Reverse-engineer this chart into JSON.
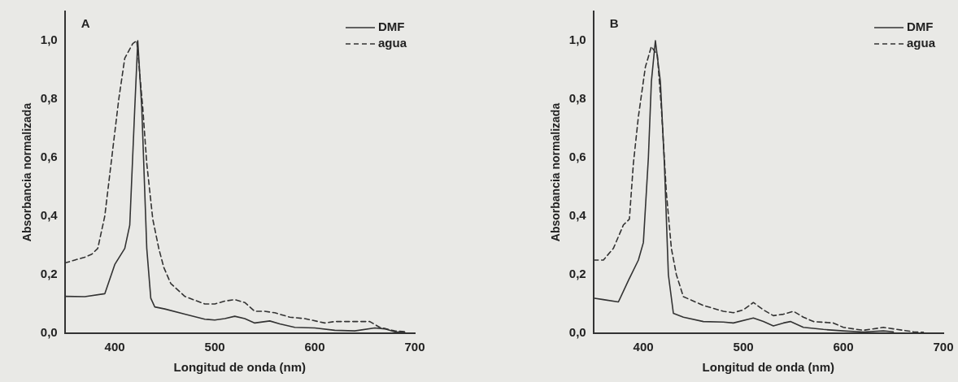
{
  "chart_data": [
    {
      "type": "line",
      "title": "A",
      "xlabel": "Longitud de onda (nm)",
      "ylabel": "Absorbancia normalizada",
      "xlim": [
        350,
        700
      ],
      "ylim": [
        0,
        1.1
      ],
      "xticks": [
        400,
        500,
        600,
        700
      ],
      "yticks": [
        {
          "value": 0,
          "label": "0,0"
        },
        {
          "value": 0.2,
          "label": "0,2"
        },
        {
          "value": 0.4,
          "label": "0,4"
        },
        {
          "value": 0.6,
          "label": "0,6"
        },
        {
          "value": 0.8,
          "label": "0,8"
        },
        {
          "value": 1.0,
          "label": "1,0"
        }
      ],
      "grid": false,
      "legend": "top right",
      "marker": "none",
      "series": [
        {
          "name": "DMF",
          "color": "#333333",
          "line_style": "solid",
          "x": [
            350,
            370,
            390,
            400,
            410,
            415,
            420,
            423,
            427,
            432,
            436,
            440,
            450,
            470,
            490,
            500,
            510,
            520,
            530,
            540,
            555,
            565,
            580,
            600,
            620,
            640,
            660,
            670,
            680,
            690
          ],
          "values": [
            0.126,
            0.125,
            0.135,
            0.235,
            0.29,
            0.37,
            0.77,
            1.0,
            0.77,
            0.29,
            0.12,
            0.09,
            0.083,
            0.065,
            0.048,
            0.045,
            0.05,
            0.058,
            0.05,
            0.035,
            0.042,
            0.032,
            0.02,
            0.018,
            0.01,
            0.008,
            0.018,
            0.015,
            0.005,
            0.003
          ]
        },
        {
          "name": "agua",
          "color": "#333333",
          "line_style": "dashed",
          "x": [
            350,
            360,
            370,
            377,
            383,
            390,
            397,
            404,
            410,
            418,
            422,
            428,
            432,
            438,
            444,
            449,
            456,
            470,
            490,
            500,
            510,
            520,
            530,
            540,
            550,
            560,
            575,
            590,
            610,
            620,
            640,
            655,
            665,
            680,
            690
          ],
          "values": [
            0.24,
            0.25,
            0.26,
            0.27,
            0.29,
            0.4,
            0.6,
            0.8,
            0.94,
            0.99,
            1.0,
            0.77,
            0.58,
            0.39,
            0.29,
            0.225,
            0.17,
            0.126,
            0.1,
            0.1,
            0.11,
            0.115,
            0.105,
            0.075,
            0.075,
            0.07,
            0.055,
            0.05,
            0.035,
            0.04,
            0.04,
            0.04,
            0.02,
            0.008,
            0.005
          ]
        }
      ]
    },
    {
      "type": "line",
      "title": "B",
      "xlabel": "Longitud de onda (nm)",
      "ylabel": "Absorbancia normalizada",
      "xlim": [
        350,
        700
      ],
      "ylim": [
        0,
        1.1
      ],
      "xticks": [
        400,
        500,
        600,
        700
      ],
      "yticks": [
        {
          "value": 0,
          "label": "0,0"
        },
        {
          "value": 0.2,
          "label": "0,2"
        },
        {
          "value": 0.4,
          "label": "0,4"
        },
        {
          "value": 0.6,
          "label": "0,6"
        },
        {
          "value": 0.8,
          "label": "0,8"
        },
        {
          "value": 1.0,
          "label": "1,0"
        }
      ],
      "grid": false,
      "legend": "top right",
      "marker": "none",
      "series": [
        {
          "name": "DMF",
          "color": "#333333",
          "line_style": "solid",
          "x": [
            350,
            360,
            375,
            385,
            395,
            400,
            405,
            408,
            412,
            417,
            421,
            425,
            430,
            440,
            460,
            480,
            490,
            510,
            520,
            530,
            540,
            547,
            560,
            580,
            600,
            620,
            640,
            650
          ],
          "values": [
            0.12,
            0.115,
            0.107,
            0.18,
            0.25,
            0.31,
            0.6,
            0.86,
            1.0,
            0.86,
            0.58,
            0.2,
            0.068,
            0.055,
            0.04,
            0.038,
            0.035,
            0.052,
            0.04,
            0.025,
            0.035,
            0.04,
            0.02,
            0.013,
            0.008,
            0.004,
            0.008,
            0.005
          ]
        },
        {
          "name": "agua",
          "color": "#333333",
          "line_style": "dashed",
          "x": [
            350,
            360,
            370,
            380,
            386,
            390,
            395,
            402,
            408,
            414,
            418,
            423,
            428,
            433,
            440,
            460,
            480,
            490,
            500,
            510,
            520,
            530,
            540,
            550,
            560,
            570,
            590,
            600,
            620,
            640,
            650,
            670,
            680
          ],
          "values": [
            0.25,
            0.25,
            0.29,
            0.37,
            0.39,
            0.58,
            0.74,
            0.91,
            0.98,
            0.95,
            0.77,
            0.48,
            0.29,
            0.2,
            0.125,
            0.095,
            0.075,
            0.07,
            0.08,
            0.105,
            0.08,
            0.06,
            0.065,
            0.075,
            0.055,
            0.04,
            0.035,
            0.02,
            0.01,
            0.02,
            0.015,
            0.005,
            0.003
          ]
        }
      ]
    }
  ]
}
